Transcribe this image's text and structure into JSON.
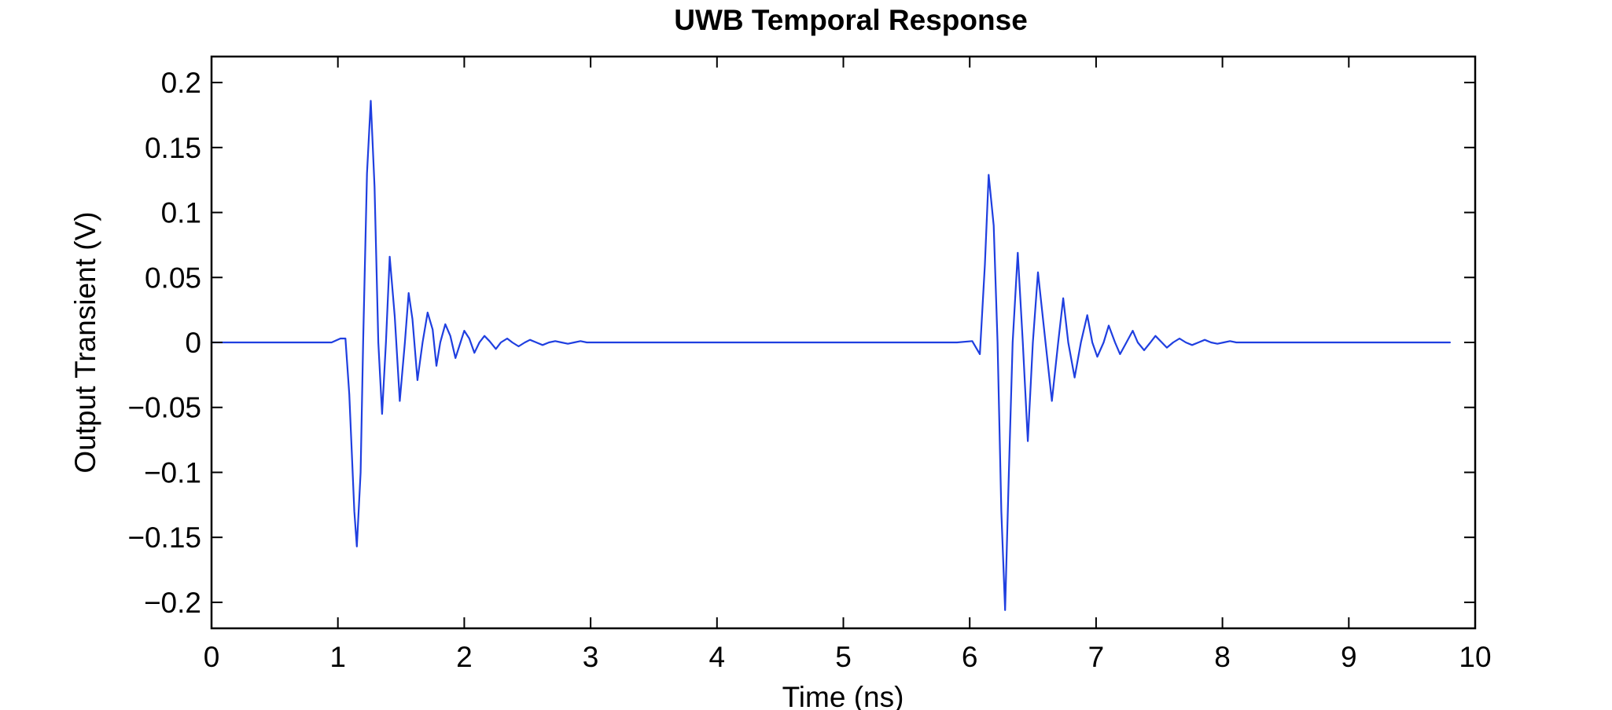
{
  "chart_data": {
    "type": "line",
    "title": "UWB Temporal Response",
    "xlabel": "Time (ns)",
    "ylabel": "Output Transient (V)",
    "xlim": [
      0,
      10
    ],
    "ylim": [
      -0.22,
      0.22
    ],
    "xticks": [
      0,
      1,
      2,
      3,
      4,
      5,
      6,
      7,
      8,
      9,
      10
    ],
    "xtick_labels": [
      "0",
      "1",
      "2",
      "3",
      "4",
      "5",
      "6",
      "7",
      "8",
      "9",
      "10"
    ],
    "yticks": [
      0.2,
      0.15,
      0.1,
      0.05,
      0,
      -0.05,
      -0.1,
      -0.15,
      -0.2
    ],
    "ytick_labels": [
      "0.2",
      "0.15",
      "0.1",
      "0.05",
      "0",
      "−0.05",
      "−0.1",
      "−0.15",
      "−0.2"
    ],
    "grid": false,
    "series": [
      {
        "color": "#1f3fe0",
        "x": [
          0.0,
          0.8,
          0.95,
          1.02,
          1.06,
          1.09,
          1.13,
          1.15,
          1.18,
          1.2,
          1.23,
          1.26,
          1.29,
          1.32,
          1.35,
          1.38,
          1.41,
          1.45,
          1.49,
          1.53,
          1.56,
          1.59,
          1.63,
          1.67,
          1.71,
          1.75,
          1.78,
          1.81,
          1.85,
          1.89,
          1.93,
          1.97,
          2.0,
          2.04,
          2.08,
          2.12,
          2.16,
          2.2,
          2.25,
          2.29,
          2.34,
          2.38,
          2.43,
          2.48,
          2.52,
          2.57,
          2.62,
          2.67,
          2.72,
          2.77,
          2.82,
          2.87,
          2.92,
          2.97,
          3.02,
          3.07,
          3.2,
          3.5,
          4.5,
          5.5,
          5.9,
          6.02,
          6.05,
          6.08,
          6.12,
          6.15,
          6.19,
          6.22,
          6.25,
          6.28,
          6.31,
          6.34,
          6.38,
          6.42,
          6.46,
          6.5,
          6.54,
          6.6,
          6.65,
          6.7,
          6.74,
          6.78,
          6.83,
          6.88,
          6.93,
          6.97,
          7.01,
          7.06,
          7.1,
          7.15,
          7.19,
          7.24,
          7.29,
          7.33,
          7.38,
          7.43,
          7.47,
          7.52,
          7.56,
          7.61,
          7.66,
          7.71,
          7.76,
          7.81,
          7.86,
          7.91,
          7.96,
          8.01,
          8.06,
          8.11,
          8.16,
          8.25,
          8.5,
          9.0,
          9.8
        ],
        "y": [
          0.0,
          0.0,
          0.0,
          0.003,
          0.003,
          -0.04,
          -0.13,
          -0.157,
          -0.1,
          0.0,
          0.13,
          0.186,
          0.12,
          0.0,
          -0.055,
          0.0,
          0.066,
          0.02,
          -0.045,
          0.0,
          0.038,
          0.018,
          -0.029,
          0.0,
          0.023,
          0.01,
          -0.018,
          0.0,
          0.014,
          0.005,
          -0.012,
          0.0,
          0.009,
          0.003,
          -0.008,
          0.0,
          0.005,
          0.001,
          -0.005,
          0.0,
          0.003,
          0.0,
          -0.003,
          0.0,
          0.002,
          0.0,
          -0.002,
          0.0,
          0.001,
          0.0,
          -0.001,
          0.0,
          0.001,
          0.0,
          0.0,
          0.0,
          0.0,
          0.0,
          0.0,
          0.0,
          0.0,
          0.001,
          -0.004,
          -0.009,
          0.06,
          0.129,
          0.09,
          0.0,
          -0.13,
          -0.206,
          -0.1,
          0.0,
          0.069,
          0.0,
          -0.076,
          0.0,
          0.054,
          0.0,
          -0.045,
          0.0,
          0.034,
          0.0,
          -0.027,
          0.0,
          0.021,
          0.0,
          -0.011,
          0.0,
          0.013,
          0.0,
          -0.009,
          0.0,
          0.009,
          0.0,
          -0.006,
          0.0,
          0.005,
          0.0,
          -0.004,
          0.0,
          0.003,
          0.0,
          -0.002,
          0.0,
          0.002,
          0.0,
          -0.001,
          0.0,
          0.001,
          0.0,
          0.0,
          0.0,
          0.0,
          0.0,
          0.0
        ]
      }
    ]
  }
}
